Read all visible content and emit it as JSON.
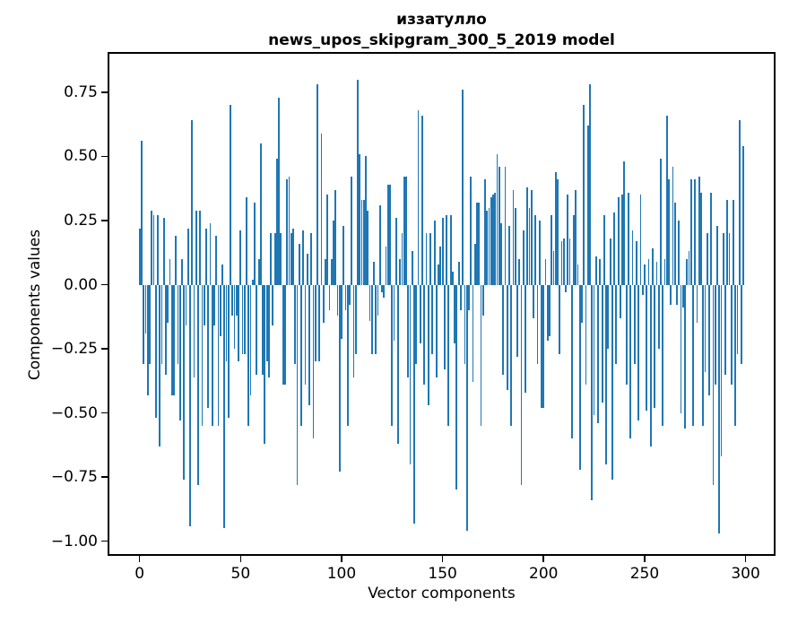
{
  "figure": {
    "background": "#ffffff",
    "text_color": "#000000"
  },
  "chart_data": {
    "type": "bar",
    "title_line1": "иззатулло",
    "title_line2": "news_upos_skipgram_300_5_2019 model",
    "xlabel": "Vector components",
    "ylabel": "Components values",
    "bar_color": "#1f77b4",
    "n_components": 300,
    "xlim": [
      -14.95,
      313.95
    ],
    "ylim": [
      -1.05,
      0.9
    ],
    "grid": false,
    "legend": null,
    "xticks": {
      "positions": [
        0,
        50,
        100,
        150,
        200,
        250,
        300
      ],
      "labels": [
        "0",
        "50",
        "100",
        "150",
        "200",
        "250",
        "300"
      ]
    },
    "yticks": {
      "positions": [
        0.75,
        0.5,
        0.25,
        0.0,
        -0.25,
        -0.5,
        -0.75,
        -1.0
      ],
      "labels": [
        "0.75",
        "0.50",
        "0.25",
        "0.00",
        "−0.25",
        "−0.50",
        "−0.75",
        "−1.00"
      ]
    },
    "values": [
      0.22,
      0.56,
      -0.31,
      -0.19,
      -0.43,
      -0.31,
      0.29,
      0.27,
      -0.52,
      0.27,
      -0.63,
      -0.31,
      0.26,
      -0.35,
      -0.15,
      0.1,
      -0.43,
      -0.43,
      0.19,
      -0.31,
      -0.53,
      0.1,
      -0.76,
      -0.16,
      0.22,
      -0.94,
      0.64,
      -0.36,
      0.29,
      -0.78,
      0.29,
      -0.55,
      -0.16,
      0.22,
      -0.48,
      0.24,
      -0.55,
      -0.16,
      0.19,
      -0.55,
      -0.2,
      0.08,
      -0.95,
      -0.3,
      -0.52,
      0.7,
      -0.12,
      -0.25,
      -0.12,
      -0.3,
      0.21,
      -0.27,
      -0.27,
      0.34,
      -0.55,
      -0.43,
      0.02,
      0.32,
      -0.35,
      0.1,
      0.55,
      -0.35,
      -0.62,
      -0.3,
      -0.36,
      0.2,
      -0.16,
      0.2,
      0.49,
      0.73,
      0.2,
      -0.39,
      -0.39,
      0.41,
      0.42,
      0.2,
      0.22,
      -0.31,
      -0.78,
      0.16,
      -0.55,
      0.21,
      -0.39,
      0.12,
      -0.47,
      0.2,
      -0.6,
      -0.3,
      0.78,
      -0.3,
      0.59,
      -0.15,
      0.1,
      0.35,
      -0.1,
      0.1,
      0.25,
      0.37,
      -0.12,
      -0.73,
      -0.21,
      0.23,
      -0.1,
      -0.55,
      -0.08,
      0.42,
      -0.36,
      -0.27,
      0.8,
      0.51,
      0.33,
      0.33,
      0.5,
      0.29,
      -0.14,
      -0.27,
      0.09,
      -0.27,
      -0.12,
      0.31,
      -0.03,
      -0.05,
      0.15,
      0.39,
      0.39,
      -0.55,
      -0.22,
      0.26,
      -0.62,
      0.1,
      0.2,
      0.42,
      0.42,
      -0.36,
      -0.7,
      0.13,
      -0.93,
      -0.31,
      0.68,
      -0.23,
      0.66,
      -0.39,
      0.2,
      -0.47,
      0.2,
      -0.27,
      0.25,
      -0.36,
      0.08,
      0.15,
      0.26,
      -0.33,
      0.27,
      -0.55,
      0.27,
      0.05,
      -0.23,
      -0.8,
      0.09,
      -0.1,
      0.76,
      -0.31,
      -0.96,
      -0.1,
      0.42,
      -0.38,
      0.16,
      0.32,
      0.32,
      -0.55,
      -0.12,
      0.41,
      0.29,
      0.3,
      0.34,
      0.35,
      0.36,
      0.51,
      0.46,
      0.24,
      -0.35,
      0.46,
      -0.41,
      0.23,
      -0.55,
      0.37,
      0.3,
      -0.28,
      0.1,
      -0.78,
      0.21,
      -0.42,
      0.38,
      0.3,
      0.37,
      -0.13,
      0.27,
      -0.31,
      0.25,
      -0.48,
      -0.48,
      0.1,
      -0.22,
      -0.2,
      0.27,
      0.13,
      0.44,
      0.41,
      -0.27,
      0.17,
      0.18,
      -0.03,
      0.35,
      0.18,
      -0.6,
      0.27,
      0.37,
      0.08,
      -0.72,
      -0.15,
      0.7,
      -0.39,
      0.62,
      0.78,
      -0.84,
      -0.51,
      0.11,
      -0.54,
      0.1,
      -0.46,
      0.27,
      -0.7,
      -0.25,
      0.18,
      -0.76,
      0.28,
      -0.31,
      0.34,
      -0.13,
      0.35,
      0.48,
      -0.39,
      0.36,
      -0.6,
      0.21,
      -0.31,
      0.17,
      -0.53,
      0.35,
      -0.04,
      0.08,
      -0.49,
      0.1,
      -0.63,
      0.14,
      -0.48,
      0.09,
      -0.25,
      0.49,
      -0.55,
      0.1,
      0.66,
      0.41,
      -0.08,
      0.46,
      0.32,
      -0.08,
      0.25,
      -0.5,
      -0.09,
      -0.56,
      0.1,
      0.13,
      0.41,
      -0.55,
      0.41,
      -0.15,
      0.42,
      0.36,
      -0.55,
      -0.34,
      0.2,
      -0.43,
      0.36,
      -0.78,
      -0.39,
      0.23,
      -0.97,
      -0.67,
      0.2,
      -0.35,
      0.33,
      0.2,
      -0.39,
      0.33,
      -0.55,
      -0.27,
      0.64,
      -0.31,
      0.54
    ]
  }
}
